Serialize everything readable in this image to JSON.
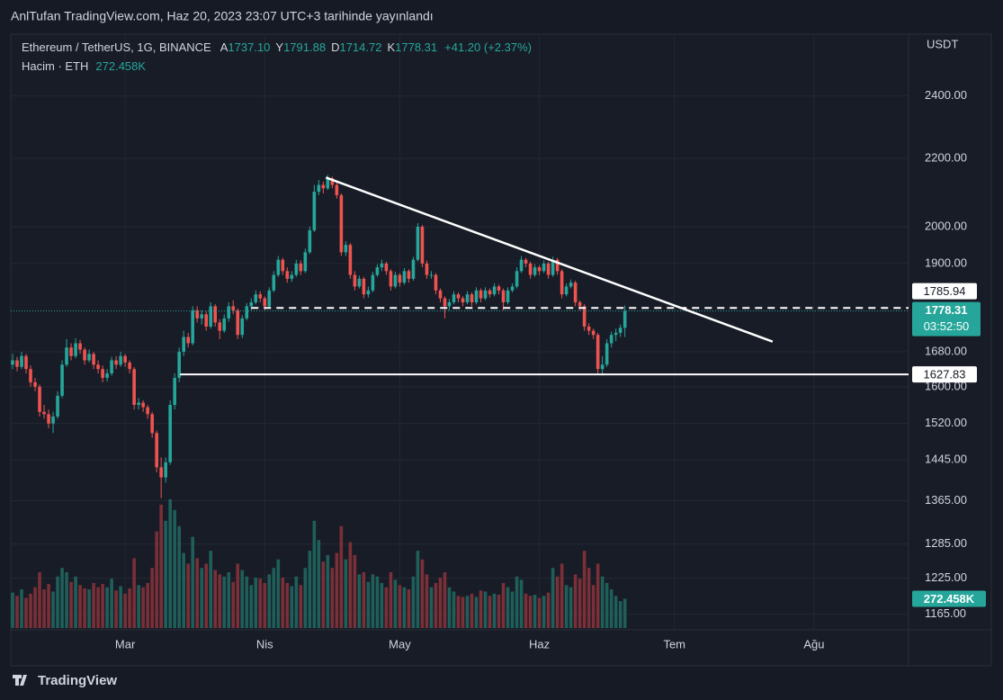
{
  "header": {
    "published": "AnlTufan TradingView.com, Haz 20, 2023 23:07 UTC+3 tarihinde yayınlandı"
  },
  "chart_data": {
    "type": "candlestick",
    "legend": {
      "symbol": "Ethereum / TetherUS, 1G, BINANCE",
      "items": [
        {
          "key": "A",
          "value": "1737.10"
        },
        {
          "key": "Y",
          "value": "1791.88"
        },
        {
          "key": "D",
          "value": "1714.72"
        },
        {
          "key": "K",
          "value": "1778.31"
        }
      ],
      "change": "+41.20 (+2.37%)",
      "volume_title": "Hacim · ETH",
      "volume": "272.458K"
    },
    "y_unit": "USDT",
    "log_scale": true,
    "grid": true,
    "ylim": [
      1140,
      2616
    ],
    "yticks": [
      {
        "value": 2400,
        "label": "2400.00"
      },
      {
        "value": 2200,
        "label": "2200.00"
      },
      {
        "value": 2000,
        "label": "2000.00"
      },
      {
        "value": 1900,
        "label": "1900.00"
      },
      {
        "value": 1680,
        "label": "1680.00"
      },
      {
        "value": 1600,
        "label": "1600.00"
      },
      {
        "value": 1520,
        "label": "1520.00"
      },
      {
        "value": 1445,
        "label": "1445.00"
      },
      {
        "value": 1365,
        "label": "1365.00"
      },
      {
        "value": 1285,
        "label": "1285.00"
      },
      {
        "value": 1225,
        "label": "1225.00"
      },
      {
        "value": 1165,
        "label": "1165.00"
      }
    ],
    "xlim": [
      -0.6,
      199
    ],
    "xticks": [
      {
        "value": 25,
        "label": "Mar"
      },
      {
        "value": 56,
        "label": "Nis"
      },
      {
        "value": 86,
        "label": "May"
      },
      {
        "value": 117,
        "label": "Haz"
      },
      {
        "value": 147,
        "label": "Tem"
      },
      {
        "value": 178,
        "label": "Ağu"
      }
    ],
    "colors": {
      "up": "#26a69a",
      "down": "#ef5350",
      "volume_up": "#1f5f5a",
      "volume_down": "#7b2f37",
      "line": "#ffffff"
    },
    "vlim": [
      0,
      1300
    ],
    "ohlc": [
      [
        1650,
        1675,
        1640,
        1660
      ],
      [
        1660,
        1668,
        1635,
        1645
      ],
      [
        1645,
        1680,
        1640,
        1670
      ],
      [
        1670,
        1675,
        1630,
        1640
      ],
      [
        1640,
        1648,
        1600,
        1610
      ],
      [
        1610,
        1620,
        1590,
        1600
      ],
      [
        1600,
        1605,
        1535,
        1545
      ],
      [
        1545,
        1560,
        1530,
        1540
      ],
      [
        1540,
        1550,
        1510,
        1520
      ],
      [
        1520,
        1545,
        1500,
        1535
      ],
      [
        1535,
        1590,
        1530,
        1580
      ],
      [
        1580,
        1660,
        1575,
        1650
      ],
      [
        1650,
        1710,
        1645,
        1690
      ],
      [
        1690,
        1700,
        1660,
        1670
      ],
      [
        1670,
        1712,
        1665,
        1700
      ],
      [
        1700,
        1708,
        1675,
        1685
      ],
      [
        1685,
        1690,
        1650,
        1660
      ],
      [
        1660,
        1685,
        1655,
        1675
      ],
      [
        1675,
        1680,
        1640,
        1650
      ],
      [
        1650,
        1660,
        1630,
        1640
      ],
      [
        1640,
        1648,
        1610,
        1620
      ],
      [
        1620,
        1640,
        1612,
        1630
      ],
      [
        1630,
        1668,
        1625,
        1660
      ],
      [
        1660,
        1670,
        1640,
        1650
      ],
      [
        1650,
        1680,
        1645,
        1670
      ],
      [
        1670,
        1675,
        1645,
        1655
      ],
      [
        1655,
        1660,
        1630,
        1640
      ],
      [
        1640,
        1645,
        1550,
        1560
      ],
      [
        1560,
        1575,
        1550,
        1565
      ],
      [
        1565,
        1570,
        1545,
        1555
      ],
      [
        1555,
        1560,
        1530,
        1540
      ],
      [
        1540,
        1545,
        1490,
        1500
      ],
      [
        1500,
        1505,
        1420,
        1430
      ],
      [
        1430,
        1450,
        1370,
        1410
      ],
      [
        1410,
        1450,
        1400,
        1440
      ],
      [
        1440,
        1570,
        1435,
        1560
      ],
      [
        1560,
        1630,
        1550,
        1620
      ],
      [
        1620,
        1690,
        1610,
        1680
      ],
      [
        1680,
        1730,
        1670,
        1715
      ],
      [
        1715,
        1725,
        1690,
        1700
      ],
      [
        1700,
        1790,
        1695,
        1780
      ],
      [
        1780,
        1790,
        1750,
        1760
      ],
      [
        1760,
        1780,
        1745,
        1770
      ],
      [
        1770,
        1778,
        1730,
        1740
      ],
      [
        1740,
        1800,
        1735,
        1790
      ],
      [
        1790,
        1795,
        1740,
        1750
      ],
      [
        1750,
        1758,
        1710,
        1730
      ],
      [
        1730,
        1770,
        1725,
        1760
      ],
      [
        1760,
        1800,
        1752,
        1790
      ],
      [
        1790,
        1805,
        1770,
        1780
      ],
      [
        1780,
        1785,
        1710,
        1720
      ],
      [
        1720,
        1768,
        1712,
        1760
      ],
      [
        1760,
        1798,
        1755,
        1790
      ],
      [
        1790,
        1810,
        1780,
        1800
      ],
      [
        1800,
        1830,
        1795,
        1820
      ],
      [
        1820,
        1828,
        1800,
        1810
      ],
      [
        1810,
        1815,
        1780,
        1790
      ],
      [
        1790,
        1838,
        1785,
        1830
      ],
      [
        1830,
        1880,
        1825,
        1870
      ],
      [
        1870,
        1920,
        1865,
        1910
      ],
      [
        1910,
        1915,
        1870,
        1880
      ],
      [
        1880,
        1890,
        1850,
        1860
      ],
      [
        1860,
        1880,
        1852,
        1870
      ],
      [
        1870,
        1910,
        1865,
        1900
      ],
      [
        1900,
        1908,
        1870,
        1880
      ],
      [
        1880,
        1940,
        1875,
        1930
      ],
      [
        1930,
        2000,
        1925,
        1990
      ],
      [
        1990,
        2120,
        1985,
        2100
      ],
      [
        2100,
        2135,
        2090,
        2120
      ],
      [
        2120,
        2130,
        2095,
        2110
      ],
      [
        2110,
        2150,
        2105,
        2140
      ],
      [
        2140,
        2145,
        2110,
        2120
      ],
      [
        2120,
        2130,
        2080,
        2090
      ],
      [
        2090,
        2095,
        1920,
        1930
      ],
      [
        1930,
        1960,
        1920,
        1950
      ],
      [
        1950,
        1955,
        1860,
        1870
      ],
      [
        1870,
        1880,
        1830,
        1840
      ],
      [
        1840,
        1868,
        1835,
        1860
      ],
      [
        1860,
        1865,
        1810,
        1820
      ],
      [
        1820,
        1840,
        1812,
        1830
      ],
      [
        1830,
        1878,
        1825,
        1870
      ],
      [
        1870,
        1898,
        1865,
        1890
      ],
      [
        1890,
        1910,
        1880,
        1900
      ],
      [
        1900,
        1905,
        1870,
        1880
      ],
      [
        1880,
        1885,
        1830,
        1840
      ],
      [
        1840,
        1878,
        1835,
        1870
      ],
      [
        1870,
        1875,
        1840,
        1850
      ],
      [
        1850,
        1888,
        1845,
        1880
      ],
      [
        1880,
        1885,
        1850,
        1860
      ],
      [
        1860,
        1918,
        1855,
        1910
      ],
      [
        1910,
        2010,
        1905,
        2000
      ],
      [
        2000,
        2005,
        1890,
        1900
      ],
      [
        1900,
        1908,
        1860,
        1870
      ],
      [
        1870,
        1880,
        1860,
        1870
      ],
      [
        1870,
        1875,
        1820,
        1830
      ],
      [
        1830,
        1835,
        1800,
        1810
      ],
      [
        1810,
        1815,
        1760,
        1790
      ],
      [
        1790,
        1808,
        1780,
        1800
      ],
      [
        1800,
        1828,
        1795,
        1820
      ],
      [
        1820,
        1825,
        1800,
        1810
      ],
      [
        1810,
        1815,
        1790,
        1800
      ],
      [
        1800,
        1828,
        1795,
        1820
      ],
      [
        1820,
        1825,
        1790,
        1800
      ],
      [
        1800,
        1838,
        1795,
        1830
      ],
      [
        1830,
        1835,
        1800,
        1810
      ],
      [
        1810,
        1838,
        1805,
        1830
      ],
      [
        1830,
        1835,
        1812,
        1820
      ],
      [
        1820,
        1848,
        1815,
        1840
      ],
      [
        1840,
        1845,
        1820,
        1830
      ],
      [
        1830,
        1835,
        1780,
        1800
      ],
      [
        1800,
        1838,
        1795,
        1830
      ],
      [
        1830,
        1848,
        1825,
        1840
      ],
      [
        1840,
        1890,
        1835,
        1880
      ],
      [
        1880,
        1920,
        1875,
        1910
      ],
      [
        1910,
        1915,
        1890,
        1900
      ],
      [
        1900,
        1905,
        1860,
        1870
      ],
      [
        1870,
        1898,
        1865,
        1890
      ],
      [
        1890,
        1895,
        1870,
        1880
      ],
      [
        1880,
        1908,
        1875,
        1900
      ],
      [
        1900,
        1905,
        1860,
        1870
      ],
      [
        1870,
        1918,
        1865,
        1910
      ],
      [
        1910,
        1915,
        1870,
        1880
      ],
      [
        1880,
        1885,
        1810,
        1820
      ],
      [
        1820,
        1848,
        1815,
        1840
      ],
      [
        1840,
        1858,
        1835,
        1850
      ],
      [
        1850,
        1855,
        1790,
        1800
      ],
      [
        1800,
        1805,
        1780,
        1790
      ],
      [
        1790,
        1795,
        1730,
        1740
      ],
      [
        1740,
        1748,
        1720,
        1730
      ],
      [
        1730,
        1735,
        1710,
        1720
      ],
      [
        1720,
        1725,
        1630,
        1640
      ],
      [
        1640,
        1670,
        1625,
        1650
      ],
      [
        1650,
        1710,
        1645,
        1700
      ],
      [
        1700,
        1728,
        1690,
        1720
      ],
      [
        1720,
        1735,
        1705,
        1725
      ],
      [
        1725,
        1745,
        1715,
        1737.1
      ],
      [
        1737.1,
        1791.88,
        1714.72,
        1778.31
      ]
    ],
    "volume": [
      330,
      300,
      360,
      280,
      320,
      380,
      520,
      360,
      410,
      340,
      480,
      560,
      520,
      430,
      480,
      400,
      370,
      360,
      420,
      380,
      410,
      380,
      460,
      350,
      390,
      320,
      370,
      650,
      400,
      380,
      420,
      560,
      900,
      1150,
      1000,
      1200,
      1100,
      950,
      700,
      600,
      850,
      650,
      560,
      600,
      720,
      540,
      500,
      480,
      520,
      430,
      600,
      540,
      480,
      400,
      470,
      460,
      420,
      500,
      560,
      640,
      470,
      420,
      390,
      480,
      400,
      560,
      720,
      1000,
      820,
      620,
      680,
      560,
      700,
      950,
      640,
      800,
      680,
      500,
      520,
      430,
      500,
      480,
      420,
      380,
      520,
      450,
      400,
      380,
      360,
      480,
      720,
      640,
      500,
      380,
      420,
      470,
      520,
      380,
      340,
      300,
      290,
      300,
      320,
      290,
      350,
      340,
      300,
      320,
      310,
      420,
      380,
      340,
      480,
      450,
      320,
      300,
      310,
      280,
      300,
      330,
      560,
      480,
      600,
      400,
      380,
      500,
      460,
      720,
      560,
      400,
      600,
      480,
      420,
      360,
      300,
      250,
      272.458
    ],
    "last_volume_label": "272.458K",
    "last_price": {
      "value": 1778.31,
      "label": "1778.31",
      "countdown": "03:52:50"
    },
    "lines": [
      {
        "kind": "trend",
        "x": [
          69.6,
          168.8
        ],
        "y": [
          2142,
          1704
        ]
      },
      {
        "kind": "horizontal",
        "x0": 53,
        "y": 1785.94,
        "dashed": true,
        "label": "1785.94"
      },
      {
        "kind": "horizontal",
        "x0": 37.2,
        "y": 1627.83,
        "dashed": false,
        "label": "1627.83"
      }
    ]
  },
  "footer": {
    "brand": "TradingView"
  }
}
